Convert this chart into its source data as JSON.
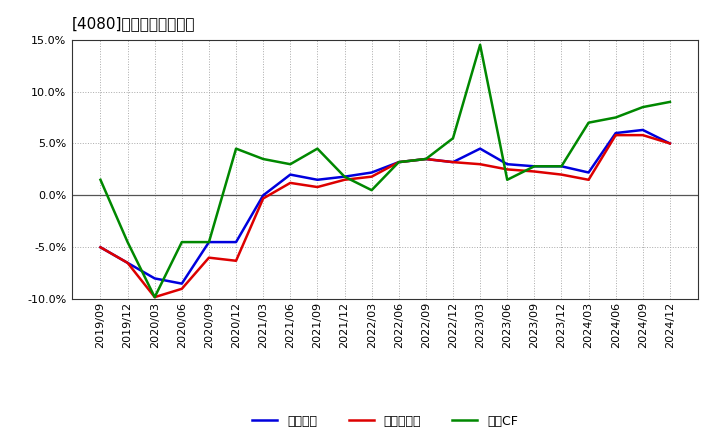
{
  "title": "[4080]　マージンの推移",
  "x_labels": [
    "2019/09",
    "2019/12",
    "2020/03",
    "2020/06",
    "2020/09",
    "2020/12",
    "2021/03",
    "2021/06",
    "2021/09",
    "2021/12",
    "2022/03",
    "2022/06",
    "2022/09",
    "2022/12",
    "2023/03",
    "2023/06",
    "2023/09",
    "2023/12",
    "2024/03",
    "2024/06",
    "2024/09",
    "2024/12"
  ],
  "keijo_rieki": [
    -5.0,
    -6.5,
    -8.0,
    -8.5,
    -4.5,
    -4.5,
    0.0,
    2.0,
    1.5,
    1.8,
    2.2,
    3.2,
    3.5,
    3.2,
    4.5,
    3.0,
    2.8,
    2.8,
    2.2,
    6.0,
    6.3,
    5.0
  ],
  "touki_jurieki": [
    -5.0,
    -6.5,
    -9.8,
    -9.0,
    -6.0,
    -6.3,
    -0.3,
    1.2,
    0.8,
    1.5,
    1.8,
    3.2,
    3.5,
    3.2,
    3.0,
    2.5,
    2.3,
    2.0,
    1.5,
    5.8,
    5.8,
    5.0
  ],
  "eigyo_cf": [
    1.5,
    -4.5,
    -9.8,
    -4.5,
    -4.5,
    4.5,
    3.5,
    3.0,
    4.5,
    1.8,
    0.5,
    3.2,
    3.5,
    5.5,
    14.5,
    1.5,
    2.8,
    2.8,
    7.0,
    7.5,
    8.5,
    9.0
  ],
  "keijo_color": "#0000dd",
  "touki_color": "#dd0000",
  "eigyo_color": "#008800",
  "ylim": [
    -10.0,
    15.0
  ],
  "yticks": [
    -10.0,
    -5.0,
    0.0,
    5.0,
    10.0,
    15.0
  ],
  "legend_labels": [
    "経常利益",
    "当期純利益",
    "営業CF"
  ],
  "bg_color": "#ffffff",
  "plot_bg_color": "#ffffff",
  "grid_color": "#aaaaaa",
  "title_fontsize": 11,
  "tick_fontsize": 8
}
